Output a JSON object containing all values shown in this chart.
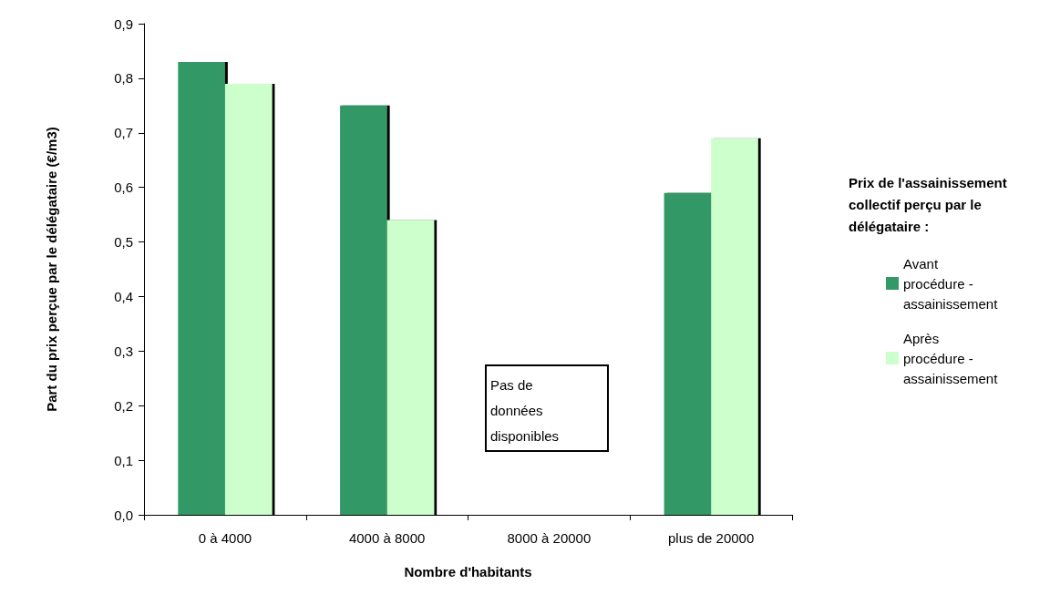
{
  "chart_data": {
    "type": "bar",
    "xlabel": "Nombre d'habitants",
    "ylabel": "Part du prix perçue par le délégataire (€/m3)",
    "legend_title": "Prix de l'assainissement collectif perçu par le délégataire :",
    "categories": [
      "0 à 4000",
      "4000 à 8000",
      "8000 à 20000",
      "plus de 20000"
    ],
    "series": [
      {
        "name": "Avant procédure - assainissement",
        "color": "#339966",
        "values": [
          0.83,
          0.75,
          null,
          0.59
        ]
      },
      {
        "name": "Après procédure - assainissement",
        "color": "#ccffcc",
        "values": [
          0.79,
          0.54,
          null,
          0.69
        ]
      }
    ],
    "ylim": [
      0,
      0.9
    ],
    "yticks": [
      {
        "value": 0,
        "label": "0,0"
      },
      {
        "value": 0.1,
        "label": "0,1"
      },
      {
        "value": 0.2,
        "label": "0,2"
      },
      {
        "value": 0.3,
        "label": "0,3"
      },
      {
        "value": 0.4,
        "label": "0,4"
      },
      {
        "value": 0.5,
        "label": "0,5"
      },
      {
        "value": 0.6,
        "label": "0,6"
      },
      {
        "value": 0.7,
        "label": "0,7"
      },
      {
        "value": 0.8,
        "label": "0,8"
      },
      {
        "value": 0.9,
        "label": "0,9"
      }
    ],
    "grid": false,
    "legend": "right",
    "annotations": [
      "Pas de données disponibles"
    ]
  }
}
